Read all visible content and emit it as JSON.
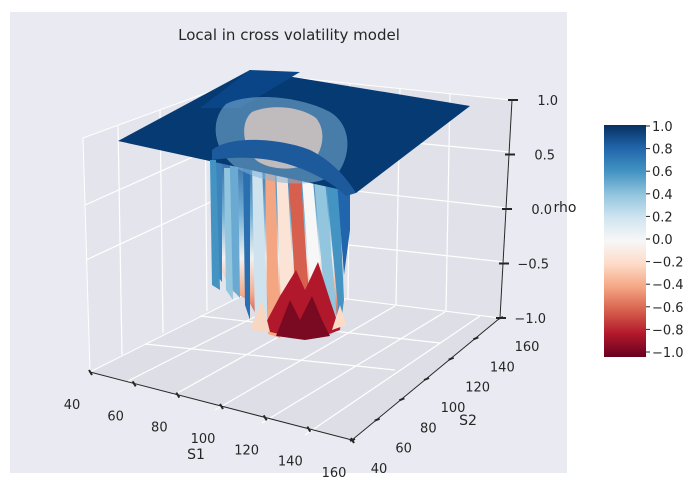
{
  "chart_data": {
    "type": "surface3d",
    "title": "Local in cross volatility model",
    "xlabel": "S1",
    "ylabel": "S2",
    "zlabel": "rho",
    "x_ticks": [
      "40",
      "60",
      "80",
      "100",
      "120",
      "140",
      "160"
    ],
    "y_ticks": [
      "40",
      "60",
      "80",
      "100",
      "120",
      "140",
      "160"
    ],
    "z_ticks": [
      "−1.0",
      "−0.5",
      "0.0",
      "0.5",
      "1.0"
    ],
    "xlim": [
      40,
      160
    ],
    "ylim": [
      40,
      160
    ],
    "zlim": [
      -1.0,
      1.0
    ],
    "colorbar": {
      "ticks": [
        "−1.0",
        "−0.8",
        "−0.6",
        "−0.4",
        "−0.2",
        "0.0",
        "0.2",
        "0.4",
        "0.6",
        "0.8",
        "1.0"
      ],
      "range": [
        -1.0,
        1.0
      ],
      "colormap": "RdBu"
    },
    "surface": {
      "plateau_value": 1.0,
      "min_value": -1.0,
      "description_levels": [
        1.0,
        0.8,
        0.5,
        0.2,
        0.0,
        -0.3,
        -0.6,
        -1.0
      ]
    },
    "grid": true,
    "colors": {
      "panel_background": "#eaeaf2",
      "high": "#053061",
      "mid": "#f7f7f7",
      "low": "#67001f"
    }
  }
}
